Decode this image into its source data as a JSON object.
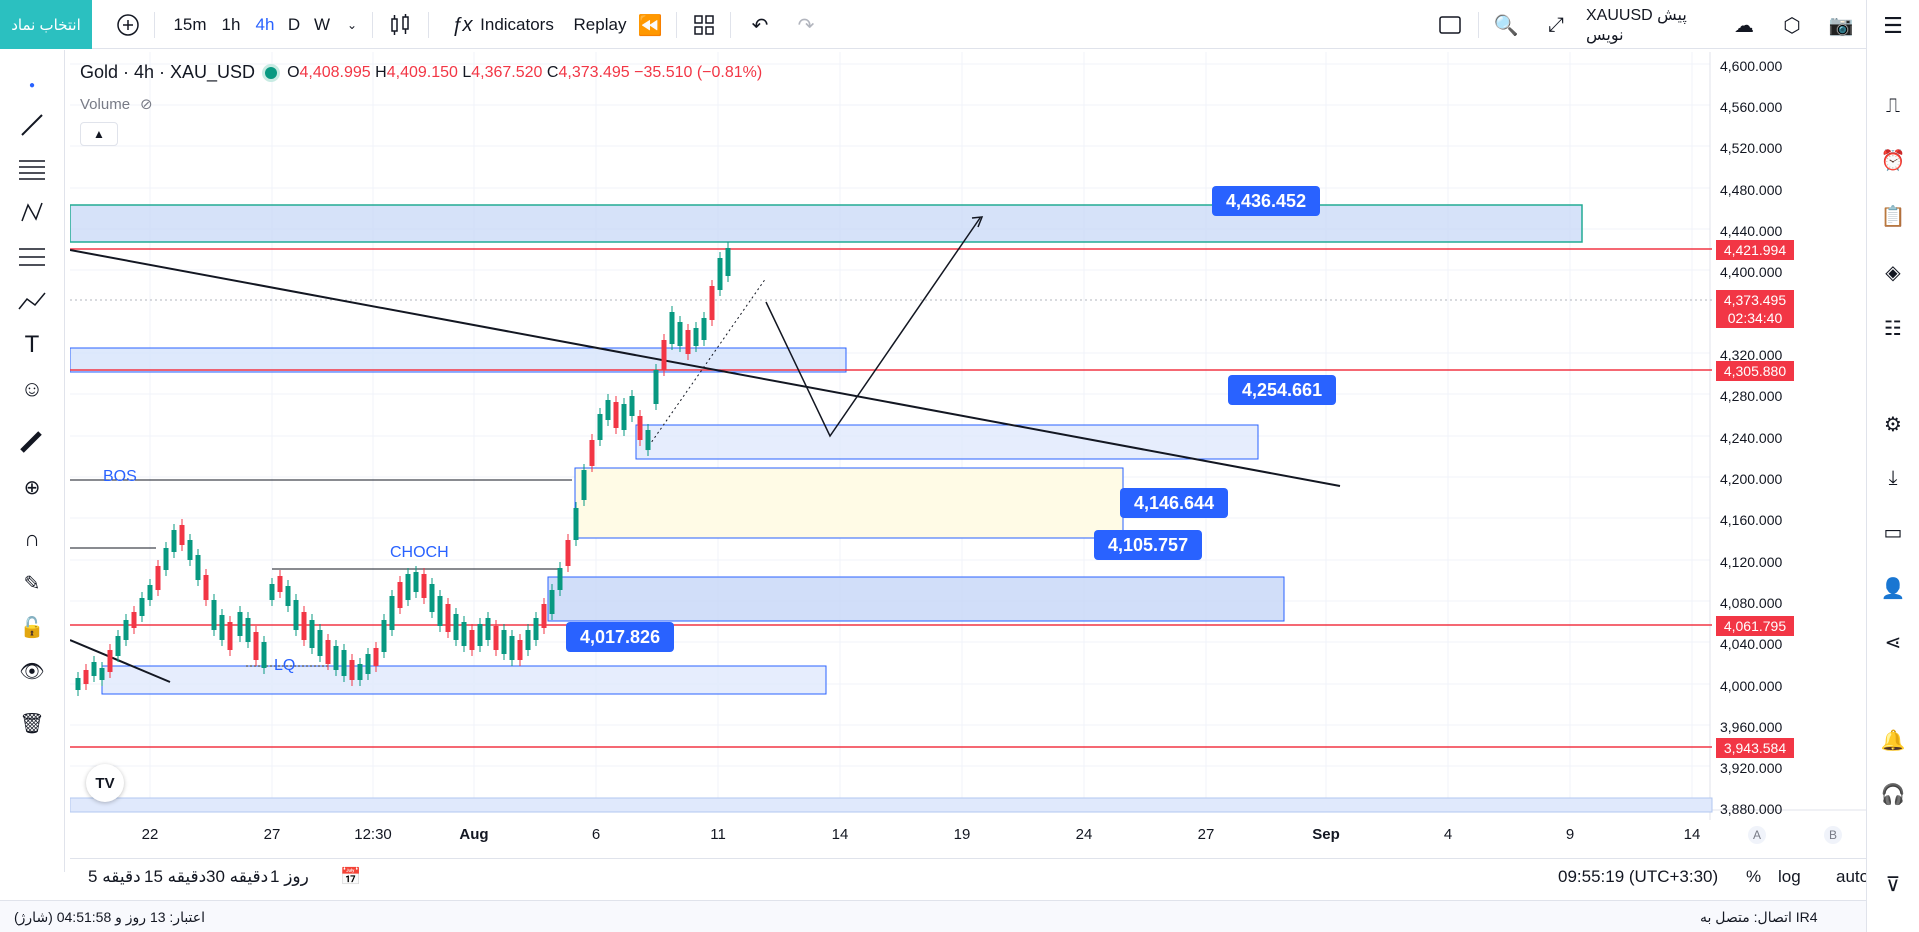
{
  "topbar": {
    "symbol_button": "انتخاب نماد",
    "intervals": [
      "15m",
      "1h",
      "4h",
      "D",
      "W"
    ],
    "active_interval": "4h",
    "indicators_label": "Indicators",
    "replay_label": "Replay",
    "symbol_draft": "XAUUSD پیش نویس"
  },
  "legend": {
    "title": "Gold · 4h · XAU_USD",
    "o_label": "O",
    "o_value": "4,408.995",
    "h_label": "H",
    "h_value": "4,409.150",
    "l_label": "L",
    "l_value": "4,367.520",
    "c_label": "C",
    "c_value": "4,373.495",
    "change": "−35.510 (−0.81%)",
    "volume_label": "Volume"
  },
  "price_axis": {
    "ticks": [
      "4,600.000",
      "4,560.000",
      "4,520.000",
      "4,480.000",
      "4,440.000",
      "4,400.000",
      "4,320.000",
      "4,280.000",
      "4,240.000",
      "4,200.000",
      "4,160.000",
      "4,120.000",
      "4,080.000",
      "4,040.000",
      "4,000.000",
      "3,960.000",
      "3,920.000",
      "3,880.000"
    ],
    "labels": [
      {
        "text": "4,421.994",
        "color": "#f23645"
      },
      {
        "text": "4,373.495",
        "color": "#f23645"
      },
      {
        "text": "02:34:40",
        "color": "#f23645"
      },
      {
        "text": "4,305.880",
        "color": "#f23645"
      },
      {
        "text": "4,061.795",
        "color": "#f23645"
      },
      {
        "text": "3,943.584",
        "color": "#f23645"
      }
    ]
  },
  "time_axis": {
    "ticks": [
      "22",
      "27",
      "12:30",
      "Aug",
      "6",
      "11",
      "14",
      "19",
      "24",
      "27",
      "Sep",
      "4",
      "9",
      "14"
    ],
    "a_label": "A",
    "b_label": "B"
  },
  "annotations": {
    "callouts": [
      "4,436.452",
      "4,254.661",
      "4,146.644",
      "4,105.757",
      "4,017.826"
    ],
    "texts": [
      "BOS",
      "CHOCH",
      "LQ"
    ]
  },
  "bottombar": {
    "ranges": [
      "5 دقیقه",
      "15 دقیقه",
      "30 دقیقه",
      "1 روز"
    ],
    "time": "09:55:19 (UTC+3:30)",
    "percent": "%",
    "log": "log",
    "auto": "auto"
  },
  "statusbar": {
    "credit": "اعتبار: 13 روز و 04:51:58 (شارژ)",
    "connection": "اتصال: متصل به IR4"
  },
  "colors": {
    "accent": "#2962ff",
    "teal": "#2bc0c0",
    "red": "#f23645",
    "green": "#089981"
  }
}
